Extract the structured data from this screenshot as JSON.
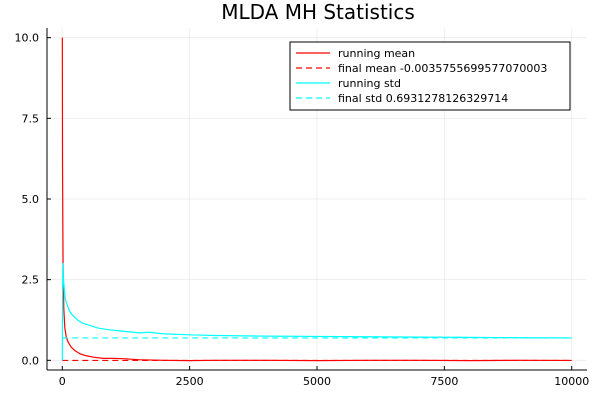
{
  "chart_data": {
    "type": "line",
    "title": "MLDA MH Statistics",
    "xlabel": "",
    "ylabel": "",
    "xlim": [
      -300,
      10300
    ],
    "ylim": [
      -0.3,
      10.3
    ],
    "xticks": [
      0,
      2500,
      5000,
      7500,
      10000
    ],
    "xtick_labels": [
      "0",
      "2500",
      "5000",
      "7500",
      "10000"
    ],
    "yticks": [
      0,
      2.5,
      5,
      7.5,
      10
    ],
    "ytick_labels": [
      "0.0",
      "2.5",
      "5.0",
      "7.5",
      "10.0"
    ],
    "grid": true,
    "legend_position": "top-right",
    "series": [
      {
        "name": "running mean",
        "color": "#ff0000",
        "dash": "solid",
        "x": [
          1,
          5,
          15,
          30,
          50,
          80,
          120,
          180,
          250,
          350,
          450,
          600,
          800,
          1000,
          1200,
          1500,
          2000,
          2500,
          3000,
          4000,
          5000,
          6000,
          7000,
          8000,
          9000,
          10000
        ],
        "y": [
          10.0,
          6.0,
          3.0,
          1.6,
          1.0,
          0.7,
          0.55,
          0.4,
          0.3,
          0.2,
          0.15,
          0.1,
          0.06,
          0.06,
          0.05,
          0.02,
          0.0,
          -0.01,
          0.0,
          0.0,
          -0.01,
          0.0,
          0.0,
          -0.01,
          0.0,
          -0.004
        ]
      },
      {
        "name": "final mean -0.0035755699577070003",
        "color": "#ff0000",
        "dash": "dashed",
        "x": [
          0,
          10000
        ],
        "y": [
          -0.0035755699577070003,
          -0.0035755699577070003
        ]
      },
      {
        "name": "running std",
        "color": "#00ffff",
        "dash": "solid",
        "x": [
          1,
          5,
          10,
          15,
          20,
          40,
          60,
          100,
          150,
          200,
          300,
          400,
          500,
          700,
          900,
          1200,
          1500,
          1700,
          2000,
          2500,
          3000,
          4000,
          5000,
          6000,
          7000,
          8000,
          9000,
          10000
        ],
        "y": [
          0.0,
          1.8,
          2.8,
          3.0,
          2.6,
          2.2,
          1.9,
          1.7,
          1.5,
          1.4,
          1.25,
          1.15,
          1.1,
          1.0,
          0.95,
          0.9,
          0.85,
          0.87,
          0.82,
          0.79,
          0.77,
          0.75,
          0.74,
          0.73,
          0.72,
          0.71,
          0.7,
          0.693
        ]
      },
      {
        "name": "final std 0.6931278126329714",
        "color": "#00ffff",
        "dash": "dashed",
        "x": [
          0,
          10000
        ],
        "y": [
          0.6931278126329714,
          0.6931278126329714
        ]
      }
    ]
  }
}
